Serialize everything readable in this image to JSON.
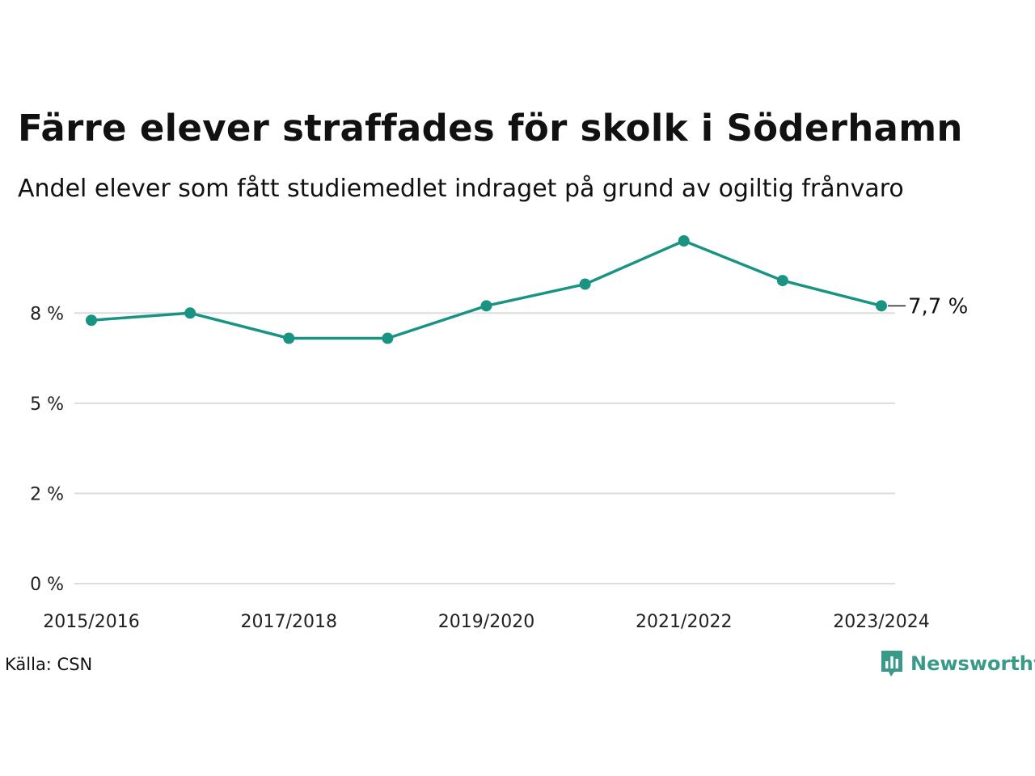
{
  "title": "Färre elever straffades för skolk i Söderhamn",
  "subtitle": "Andel elever som fått studiemedlet indraget på grund av ogiltig frånvaro",
  "source": "Källa: CSN",
  "brand": {
    "name": "Newsworthy",
    "color": "#3a9a89"
  },
  "chart_data": {
    "type": "line",
    "title": "Färre elever straffades för skolk i Söderhamn",
    "subtitle": "Andel elever som fått studiemedlet indraget på grund av ogiltig frånvaro",
    "x": [
      "2015/2016",
      "2016/2017",
      "2017/2018",
      "2018/2019",
      "2019/2020",
      "2020/2021",
      "2021/2022",
      "2022/2023",
      "2023/2024"
    ],
    "x_tick_labels": [
      "2015/2016",
      "2017/2018",
      "2019/2020",
      "2021/2022",
      "2023/2024"
    ],
    "series": [
      {
        "values": [
          7.3,
          7.5,
          6.8,
          6.8,
          7.7,
          8.3,
          9.5,
          8.4,
          7.7
        ],
        "color": "#1a9482"
      }
    ],
    "ylim": [
      0,
      9.5
    ],
    "y_ticks": [
      0,
      2.5,
      5,
      7.5
    ],
    "y_tick_labels": [
      "0 %",
      "2 %",
      "5 %",
      "8 %"
    ],
    "end_label": "7,7 %",
    "grid": true,
    "gridColor": "#dddddd"
  }
}
